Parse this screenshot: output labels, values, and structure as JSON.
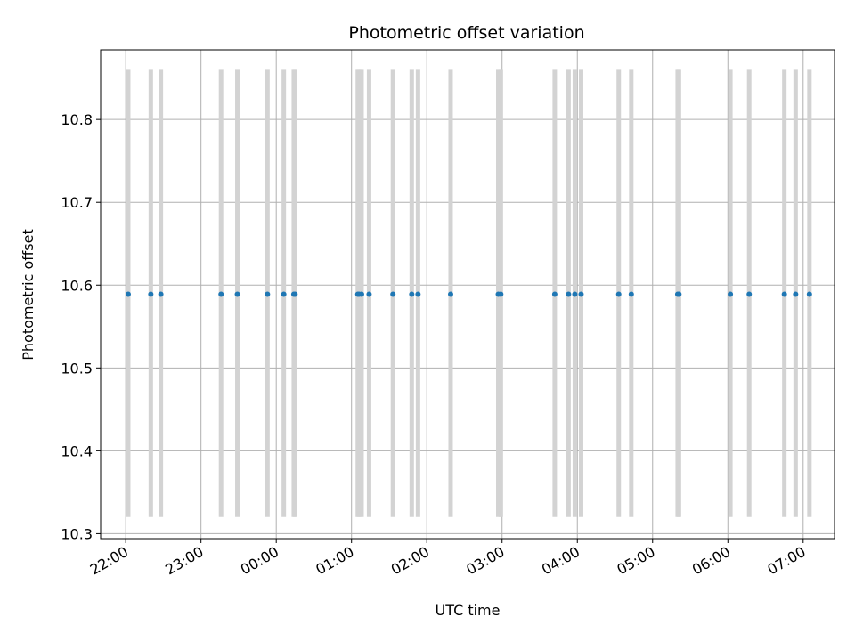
{
  "chart_data": {
    "type": "scatter",
    "title": "Photometric offset variation",
    "xlabel": "UTC time",
    "ylabel": "Photometric offset",
    "ylim": [
      10.294,
      10.884
    ],
    "xlim": [
      "21:40",
      "31:25"
    ],
    "grid": true,
    "x_ticks": [
      {
        "label": "22:00",
        "value": "22:00"
      },
      {
        "label": "23:00",
        "value": "23:00"
      },
      {
        "label": "00:00",
        "value": "24:00"
      },
      {
        "label": "01:00",
        "value": "25:00"
      },
      {
        "label": "02:00",
        "value": "26:00"
      },
      {
        "label": "03:00",
        "value": "27:00"
      },
      {
        "label": "04:00",
        "value": "28:00"
      },
      {
        "label": "05:00",
        "value": "29:00"
      },
      {
        "label": "06:00",
        "value": "30:00"
      },
      {
        "label": "07:00",
        "value": "31:00"
      }
    ],
    "y_ticks": [
      10.3,
      10.4,
      10.5,
      10.6,
      10.7,
      10.8
    ],
    "series": [
      {
        "color": "#1f77b4",
        "x": [
          "22:02",
          "22:20",
          "22:28",
          "23:16",
          "23:29",
          "23:53",
          "00:06",
          "00:14",
          "00:15",
          "01:05",
          "01:06",
          "01:08",
          "01:14",
          "01:33",
          "01:48",
          "01:53",
          "02:19",
          "02:57",
          "02:59",
          "03:42",
          "03:53",
          "03:58",
          "04:03",
          "04:33",
          "04:43",
          "05:20",
          "05:21",
          "06:02",
          "06:17",
          "06:45",
          "06:54",
          "07:05"
        ],
        "y": [
          10.589,
          10.589,
          10.589,
          10.589,
          10.589,
          10.589,
          10.589,
          10.589,
          10.589,
          10.589,
          10.589,
          10.589,
          10.589,
          10.589,
          10.589,
          10.589,
          10.589,
          10.589,
          10.589,
          10.589,
          10.589,
          10.589,
          10.589,
          10.589,
          10.589,
          10.589,
          10.589,
          10.589,
          10.589,
          10.589,
          10.589,
          10.589
        ]
      }
    ],
    "vertical_bands": {
      "color": "#d3d3d3",
      "y_range": [
        10.32,
        10.86
      ],
      "x": [
        "22:02",
        "22:20",
        "22:28",
        "23:16",
        "23:29",
        "23:53",
        "00:06",
        "00:14",
        "00:15",
        "01:05",
        "01:06",
        "01:08",
        "01:14",
        "01:33",
        "01:48",
        "01:53",
        "02:19",
        "02:57",
        "02:59",
        "03:42",
        "03:53",
        "03:58",
        "04:03",
        "04:33",
        "04:43",
        "05:20",
        "05:21",
        "06:02",
        "06:17",
        "06:45",
        "06:54",
        "07:05"
      ]
    }
  }
}
